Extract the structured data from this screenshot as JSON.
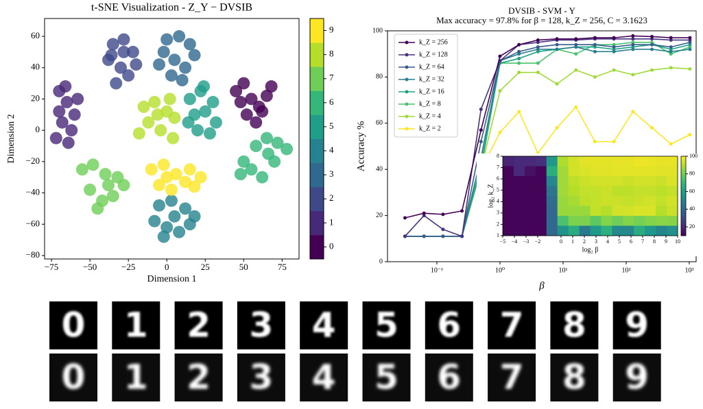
{
  "chart_data": [
    {
      "type": "scatter",
      "title": "t-SNE Visualization - Z_Y − DVSIB",
      "xlabel": "Dimension 1",
      "ylabel": "Dimension 2",
      "xlim": [
        -79.5,
        86
      ],
      "ylim": [
        -82.2,
        71.4
      ],
      "xticks": [
        {
          "value": -75,
          "label": "−75"
        },
        {
          "value": -50,
          "label": "−50"
        },
        {
          "value": -25,
          "label": "−25"
        },
        0,
        25,
        50,
        75
      ],
      "yticks": [
        {
          "value": -80,
          "label": "−80"
        },
        {
          "value": -60,
          "label": "−60"
        },
        {
          "value": -40,
          "label": "−40"
        },
        {
          "value": -20,
          "label": "−20"
        },
        0,
        20,
        40,
        60
      ],
      "colorbar": {
        "lim": [
          -0.5,
          9.5
        ],
        "ticks": [
          0,
          1,
          2,
          3,
          4,
          5,
          6,
          7,
          8,
          9
        ]
      },
      "series": [
        {
          "color": "#440154",
          "x": [
            45,
            50,
            55,
            60,
            65,
            52,
            58,
            68,
            48,
            62
          ],
          "y": [
            25,
            30,
            20,
            15,
            22,
            10,
            5,
            28,
            18,
            12
          ]
        },
        {
          "color": "#482878",
          "x": [
            -70,
            -65,
            -60,
            -68,
            -62,
            -72,
            -58,
            -66,
            -64,
            -70
          ],
          "y": [
            25,
            18,
            10,
            5,
            0,
            -5,
            20,
            28,
            -8,
            12
          ]
        },
        {
          "color": "#3e4989",
          "x": [
            -35,
            -28,
            -22,
            -38,
            -30,
            -25,
            -33,
            -20,
            -36,
            -28
          ],
          "y": [
            55,
            58,
            50,
            45,
            40,
            35,
            30,
            42,
            48,
            50
          ]
        },
        {
          "color": "#31688e",
          "x": [
            0,
            8,
            15,
            -2,
            5,
            12,
            18,
            3,
            10,
            -5
          ],
          "y": [
            58,
            60,
            55,
            50,
            45,
            40,
            48,
            35,
            32,
            42
          ]
        },
        {
          "color": "#26828e",
          "x": [
            -5,
            3,
            12,
            18,
            -8,
            0,
            8,
            15,
            5,
            -2
          ],
          "y": [
            -48,
            -45,
            -50,
            -55,
            -58,
            -62,
            -65,
            -60,
            -55,
            -68
          ]
        },
        {
          "color": "#1f9e89",
          "x": [
            15,
            22,
            30,
            18,
            25,
            32,
            20,
            28,
            14,
            24
          ],
          "y": [
            20,
            25,
            18,
            10,
            12,
            5,
            0,
            -2,
            5,
            28
          ]
        },
        {
          "color": "#35b779",
          "x": [
            50,
            58,
            65,
            72,
            78,
            55,
            62,
            70,
            48,
            66
          ],
          "y": [
            -20,
            -10,
            -5,
            -8,
            -12,
            -25,
            -30,
            -20,
            -28,
            -15
          ]
        },
        {
          "color": "#6ece58",
          "x": [
            -55,
            -48,
            -40,
            -32,
            -28,
            -50,
            -42,
            -35,
            -45,
            -38
          ],
          "y": [
            -25,
            -22,
            -28,
            -30,
            -35,
            -38,
            -45,
            -42,
            -50,
            -35
          ]
        },
        {
          "color": "#b5de2b",
          "x": [
            -15,
            -8,
            0,
            5,
            -12,
            -4,
            4,
            -18,
            2,
            -6
          ],
          "y": [
            15,
            18,
            12,
            8,
            5,
            0,
            -5,
            -2,
            20,
            10
          ]
        },
        {
          "color": "#fde725",
          "x": [
            -10,
            -2,
            6,
            15,
            22,
            -5,
            3,
            12,
            18,
            0
          ],
          "y": [
            -25,
            -22,
            -28,
            -25,
            -30,
            -35,
            -38,
            -33,
            -36,
            -30
          ]
        }
      ]
    },
    {
      "type": "line",
      "title": "DVSIB - SVM - Y",
      "subtitle": "Max accuracy = 97.8% for β = 128, k_Z = 256, C = 3.1623",
      "xlabel": "β",
      "ylabel": "Accuracy %",
      "log_x": true,
      "xlim": [
        0.0165,
        1285
      ],
      "ylim": [
        0,
        100
      ],
      "xticks": [
        {
          "value": 0.1,
          "label": "10⁻¹"
        },
        {
          "value": 1,
          "label": "10⁰"
        },
        {
          "value": 10,
          "label": "10¹"
        },
        {
          "value": 100,
          "label": "10²"
        },
        {
          "value": 1000,
          "label": "10³"
        }
      ],
      "yticks": [
        0,
        20,
        40,
        60,
        80,
        100
      ],
      "legend": "upper left",
      "x": [
        0.03125,
        0.0625,
        0.125,
        0.25,
        0.5,
        1,
        2,
        4,
        8,
        16,
        32,
        64,
        128,
        256,
        512,
        1024
      ],
      "series": [
        {
          "name": "k_Z = 256",
          "color": "#440154",
          "values": [
            19,
            21,
            20.5,
            22,
            57,
            89,
            94,
            96,
            96.5,
            96.5,
            97,
            97,
            97.8,
            97.5,
            97,
            97
          ]
        },
        {
          "name": "k_Z = 128",
          "color": "#46327e",
          "values": [
            11,
            20,
            14,
            11,
            66,
            87,
            94,
            95,
            96,
            96,
            96.5,
            96.5,
            96.5,
            96.5,
            96,
            96
          ]
        },
        {
          "name": "k_Z = 64",
          "color": "#365c8d",
          "values": [
            11,
            11,
            11,
            11,
            52,
            87,
            91,
            93,
            94,
            94,
            94,
            93,
            94,
            94,
            93,
            95
          ]
        },
        {
          "name": "k_Z = 32",
          "color": "#277f8e",
          "values": [
            11,
            11,
            11,
            11,
            45,
            87,
            90,
            92,
            92,
            93,
            91,
            91,
            92,
            92,
            91,
            92
          ]
        },
        {
          "name": "k_Z = 16",
          "color": "#1fa187",
          "values": [
            11,
            11,
            11,
            11,
            42,
            86,
            88,
            91,
            92,
            93,
            93,
            92,
            93,
            94,
            92,
            94
          ]
        },
        {
          "name": "k_Z = 8",
          "color": "#4ac16d",
          "values": [
            11,
            11,
            11,
            11,
            40,
            86,
            86,
            86,
            92,
            90,
            94,
            94,
            95,
            95,
            90,
            93
          ]
        },
        {
          "name": "k_Z = 4",
          "color": "#a0da39",
          "values": [
            11,
            11,
            11,
            11,
            40,
            74,
            82,
            82,
            77,
            83,
            80,
            83,
            81,
            83,
            84,
            83.5
          ]
        },
        {
          "name": "k_Z = 2",
          "color": "#fde725",
          "values": [
            11,
            11,
            11,
            11,
            40,
            56,
            65,
            47,
            58,
            67,
            52,
            52,
            65,
            58,
            51,
            55
          ]
        }
      ],
      "inset": {
        "type": "heatmap",
        "colormap": "viridis",
        "xlabel": "log₂ β",
        "ylabel": "log₂ k_Z",
        "xlim": [
          -5,
          10
        ],
        "ylim": [
          1,
          8
        ],
        "clim": [
          10,
          100
        ],
        "xticks": [
          {
            "value": -5,
            "label": "−5"
          },
          {
            "value": -4,
            "label": "−4"
          },
          {
            "value": -3,
            "label": "−3"
          },
          {
            "value": -2,
            "label": "−2"
          },
          0,
          1,
          2,
          3,
          4,
          5,
          6,
          7,
          8,
          9,
          10
        ],
        "yticks": [
          1,
          2,
          3,
          4,
          5,
          6,
          7,
          8
        ],
        "colorbar_ticks": [
          20,
          40,
          60,
          80,
          100
        ]
      }
    }
  ],
  "digit_images": {
    "top_row": [
      "0",
      "1",
      "2",
      "3",
      "4",
      "5",
      "6",
      "7",
      "8",
      "9"
    ],
    "bottom_row": [
      "0",
      "1",
      "2",
      "3",
      "4",
      "5",
      "6",
      "7",
      "8",
      "9"
    ]
  }
}
